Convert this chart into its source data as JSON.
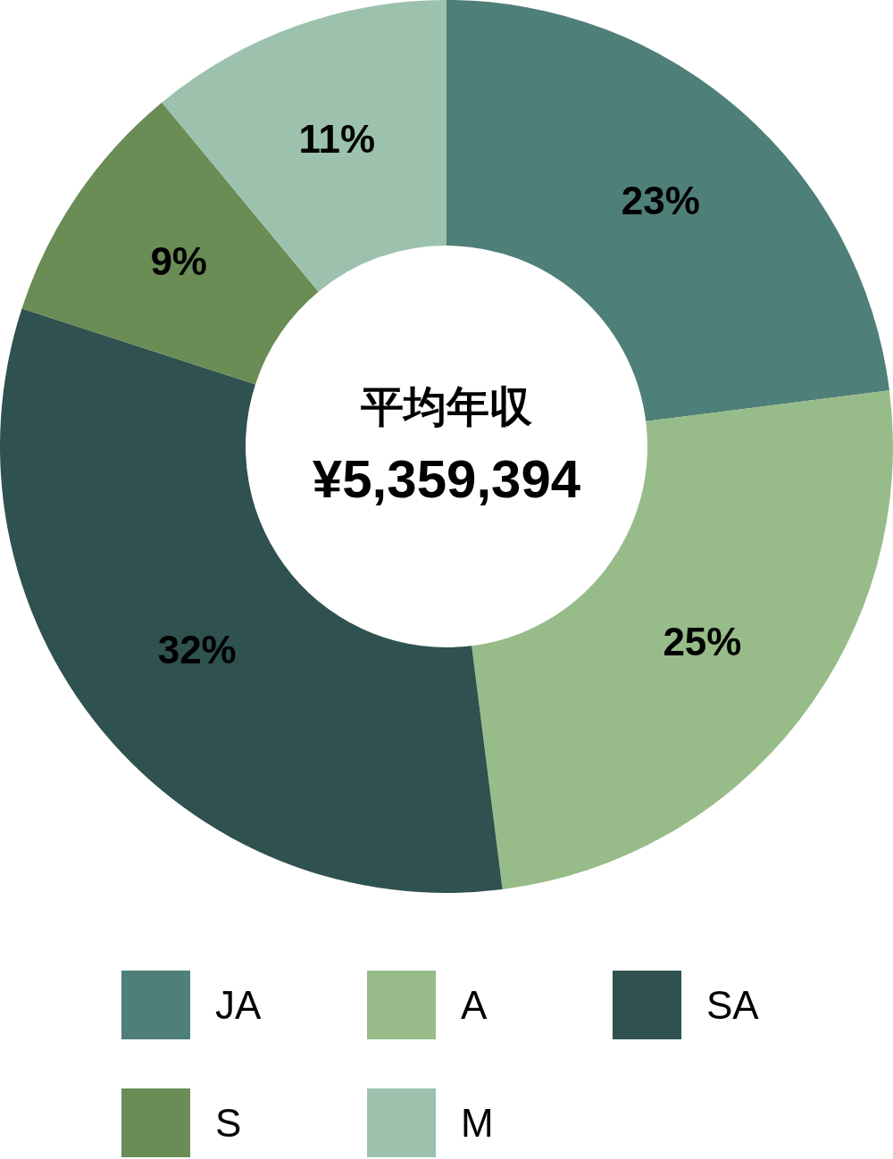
{
  "chart_data": {
    "type": "donut",
    "categories": [
      "JA",
      "A",
      "SA",
      "S",
      "M"
    ],
    "values": [
      23,
      25,
      32,
      9,
      11
    ],
    "colors": [
      "#4e7f78",
      "#97bc89",
      "#2f5150",
      "#6a8c55",
      "#9cc2ae"
    ],
    "value_labels": [
      "23%",
      "25%",
      "32%",
      "9%",
      "11%"
    ],
    "annotations": [
      "平均年収",
      "¥5,359,394"
    ],
    "legend": "bottom"
  }
}
